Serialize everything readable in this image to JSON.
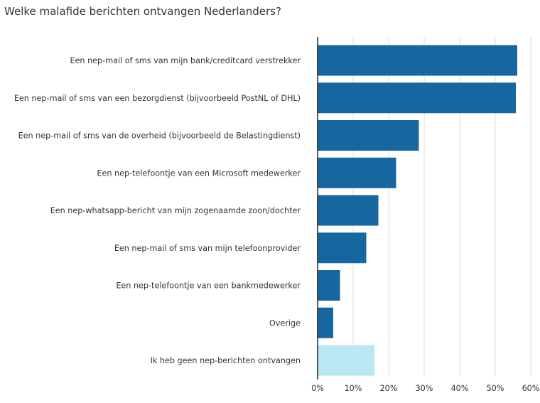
{
  "chart_data": {
    "type": "bar",
    "orientation": "horizontal",
    "title": "Welke malafide berichten ontvangen Nederlanders?",
    "categories": [
      "Een nep-mail of sms van mijn bank/creditcard verstrekker",
      "Een nep-mail of sms van een bezorgdienst (bijvoorbeeld PostNL of DHL)",
      "Een nep-mail of sms van de overheid (bijvoorbeeld de Belastingdienst)",
      "Een nep-telefoontje van een Microsoft medewerker",
      "Een nep-whatsapp-bericht van mijn zogenaamde zoon/dochter",
      "Een nep-mail of sms van mijn telefoonprovider",
      "Een nep-telefoontje van een bankmedewerker",
      "Overige",
      "Ik heb geen nep-berichten ontvangen"
    ],
    "values": [
      56.2,
      55.8,
      28.5,
      22.1,
      17.1,
      13.7,
      6.3,
      4.4,
      16.0
    ],
    "xlim": [
      0,
      60
    ],
    "xticks": [
      0,
      10,
      20,
      30,
      40,
      50,
      60
    ],
    "tick_format": "{v}%",
    "grid": "vertical",
    "colors": {
      "bar": "#16669f",
      "highlight_bar": "#b9e7f3",
      "highlight_index": 8,
      "grid": "#dddddd",
      "axis": "#222222"
    }
  }
}
